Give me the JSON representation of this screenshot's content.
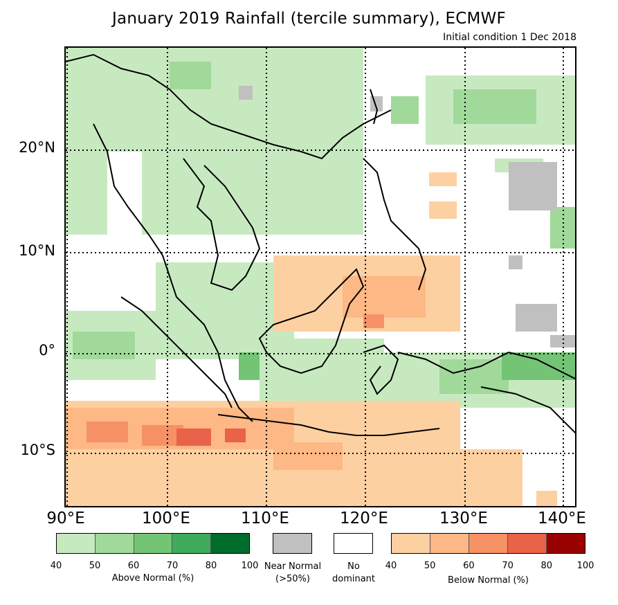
{
  "title": "January 2019 Rainfall (tercile summary), ECMWF",
  "subtitle": "Initial condition 1 Dec 2018",
  "axes": {
    "lat_labels": [
      "20°N",
      "10°N",
      "0°",
      "10°S"
    ],
    "lon_labels": [
      "90°E",
      "100°E",
      "110°E",
      "120°E",
      "130°E",
      "140°E"
    ]
  },
  "legend": {
    "above_normal": {
      "label": "Above Normal (%)",
      "ticks": [
        "40",
        "50",
        "60",
        "70",
        "80",
        "100"
      ],
      "colors": [
        "#c7e9c0",
        "#a1d99b",
        "#74c476",
        "#41ab5d",
        "#006d2c"
      ]
    },
    "near_normal": {
      "label_line1": "Near Normal",
      "label_line2": "(>50%)",
      "color": "#c0c0c0"
    },
    "no_dominant": {
      "label_line1": "No",
      "label_line2": "dominant",
      "color": "#ffffff"
    },
    "below_normal": {
      "label": "Below Normal (%)",
      "ticks": [
        "40",
        "50",
        "60",
        "70",
        "80",
        "100"
      ],
      "colors": [
        "#fdd0a2",
        "#fdb885",
        "#f69166",
        "#e8634a",
        "#990000"
      ]
    }
  }
}
